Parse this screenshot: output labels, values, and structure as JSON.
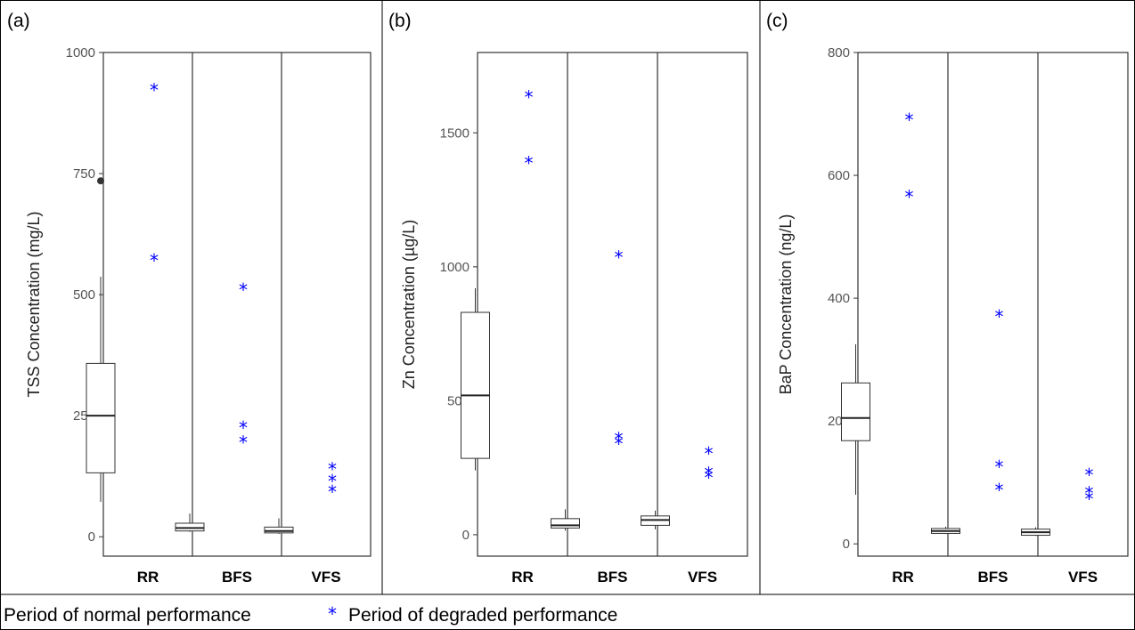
{
  "legend": {
    "normal_label": "Period of normal performance",
    "degraded_label": "Period of degraded performance",
    "degraded_symbol": "*",
    "degraded_color": "#0000ff"
  },
  "chart_data": [
    {
      "type": "box",
      "caption": "(a)",
      "ylabel": "TSS Concentration (mg/L)",
      "ylim": [
        -40,
        1000
      ],
      "yticks": [
        0,
        250,
        500,
        750,
        1000
      ],
      "categories": [
        "RR",
        "BFS",
        "VFS"
      ],
      "boxes": [
        {
          "category": "RR",
          "whisker_low": 72,
          "q1": 132,
          "median": 250,
          "q3": 358,
          "whisker_high": 537,
          "outliers": [
            735
          ]
        },
        {
          "category": "BFS",
          "whisker_low": 10,
          "q1": 12,
          "median": 18,
          "q3": 28,
          "whisker_high": 48,
          "outliers": []
        },
        {
          "category": "VFS",
          "whisker_low": 6,
          "q1": 8,
          "median": 12,
          "q3": 20,
          "whisker_high": 38,
          "outliers": []
        }
      ],
      "degraded_points": [
        {
          "category": "RR",
          "values": [
            935,
            583
          ]
        },
        {
          "category": "BFS",
          "values": [
            522,
            237,
            207
          ]
        },
        {
          "category": "VFS",
          "values": [
            152,
            127,
            105
          ]
        }
      ]
    },
    {
      "type": "box",
      "caption": "(b)",
      "ylabel": "Zn Concentration (µg/L)",
      "ylim": [
        -80,
        1800
      ],
      "yticks": [
        0,
        500,
        1000,
        1500
      ],
      "categories": [
        "RR",
        "BFS",
        "VFS"
      ],
      "boxes": [
        {
          "category": "RR",
          "whisker_low": 240,
          "q1": 285,
          "median": 520,
          "q3": 830,
          "whisker_high": 920,
          "outliers": []
        },
        {
          "category": "BFS",
          "whisker_low": 15,
          "q1": 25,
          "median": 35,
          "q3": 60,
          "whisker_high": 95,
          "outliers": []
        },
        {
          "category": "VFS",
          "whisker_low": 20,
          "q1": 35,
          "median": 55,
          "q3": 70,
          "whisker_high": 90,
          "outliers": []
        }
      ],
      "degraded_points": [
        {
          "category": "RR",
          "values": [
            1655,
            1410
          ]
        },
        {
          "category": "BFS",
          "values": [
            1058,
            380,
            362
          ]
        },
        {
          "category": "VFS",
          "values": [
            325,
            250,
            235
          ]
        }
      ]
    },
    {
      "type": "box",
      "caption": "(c)",
      "ylabel": "BaP Concentration (ng/L)",
      "ylim": [
        -20,
        800
      ],
      "yticks": [
        0,
        200,
        400,
        600,
        800
      ],
      "categories": [
        "RR",
        "BFS",
        "VFS"
      ],
      "boxes": [
        {
          "category": "RR",
          "whisker_low": 80,
          "q1": 168,
          "median": 205,
          "q3": 262,
          "whisker_high": 325,
          "outliers": []
        },
        {
          "category": "BFS",
          "whisker_low": 16,
          "q1": 17,
          "median": 21,
          "q3": 25,
          "whisker_high": 28,
          "outliers": []
        },
        {
          "category": "VFS",
          "whisker_low": 13,
          "q1": 14,
          "median": 19,
          "q3": 24,
          "whisker_high": 27,
          "outliers": []
        }
      ],
      "degraded_points": [
        {
          "category": "RR",
          "values": [
            700,
            575
          ]
        },
        {
          "category": "BFS",
          "values": [
            380,
            135,
            97
          ]
        },
        {
          "category": "VFS",
          "values": [
            122,
            92,
            83
          ]
        }
      ]
    }
  ]
}
